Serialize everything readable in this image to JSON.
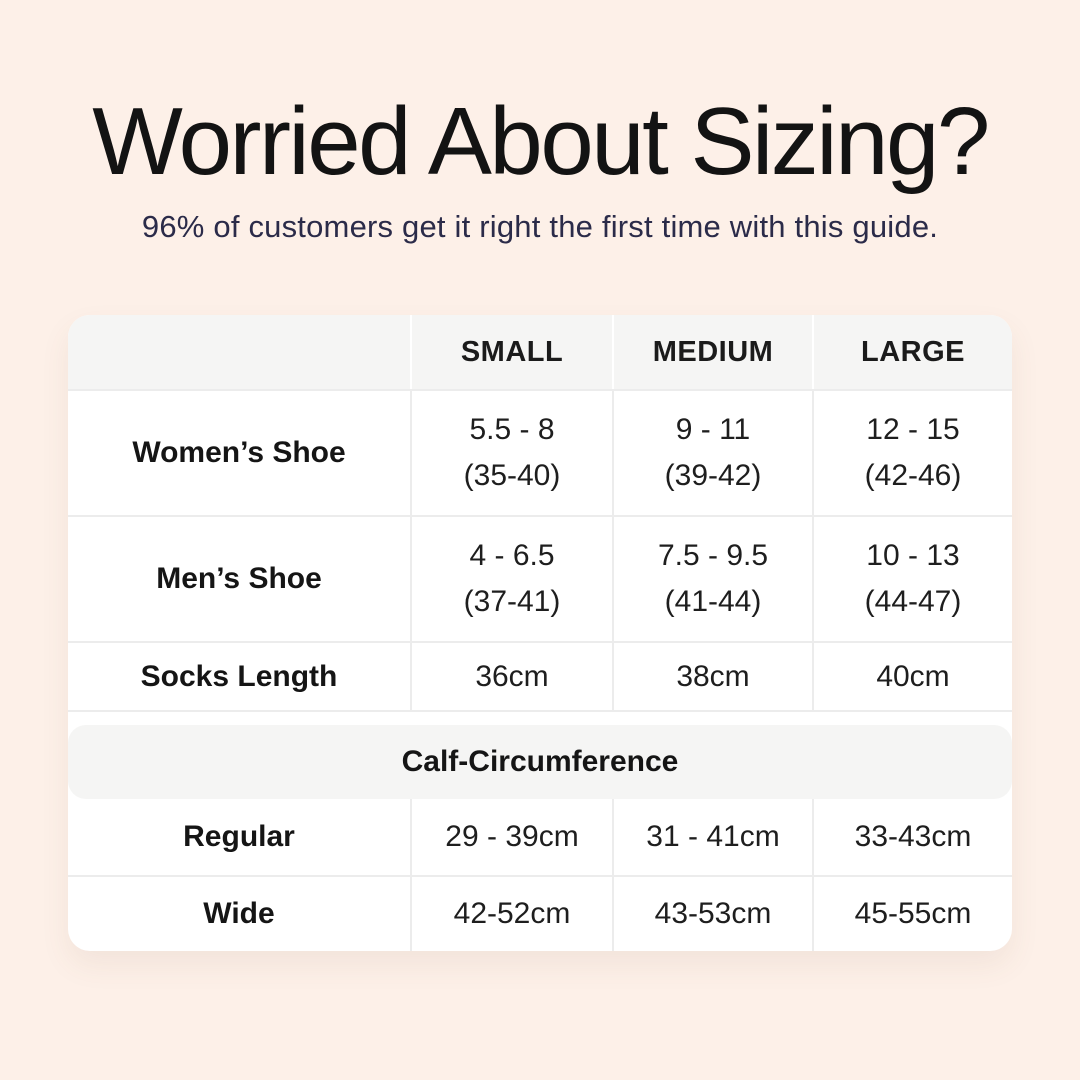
{
  "page": {
    "title": "Worried About Sizing?",
    "subtitle": "96% of customers get it right the first time with this guide."
  },
  "colors": {
    "background": "#fdf0e8",
    "card": "#ffffff",
    "band_gray": "#f5f5f4",
    "divider": "#ececec",
    "title_text": "#131313",
    "subtitle_text": "#2b2b49"
  },
  "table": {
    "headers": [
      "",
      "SMALL",
      "MEDIUM",
      "LARGE"
    ],
    "shoe_rows": [
      {
        "label": "Women’s Shoe",
        "cells": [
          {
            "main": "5.5 - 8",
            "sub": "(35-40)"
          },
          {
            "main": "9 - 11",
            "sub": "(39-42)"
          },
          {
            "main": "12 - 15",
            "sub": "(42-46)"
          }
        ]
      },
      {
        "label": "Men’s Shoe",
        "cells": [
          {
            "main": "4 - 6.5",
            "sub": "(37-41)"
          },
          {
            "main": "7.5 - 9.5",
            "sub": "(41-44)"
          },
          {
            "main": "10 - 13",
            "sub": "(44-47)"
          }
        ]
      }
    ],
    "socks_row": {
      "label": "Socks Length",
      "cells": [
        "36cm",
        "38cm",
        "40cm"
      ]
    },
    "section_header": "Calf-Circumference",
    "calf_rows": [
      {
        "label": "Regular",
        "cells": [
          "29 - 39cm",
          "31 - 41cm",
          "33-43cm"
        ]
      },
      {
        "label": "Wide",
        "cells": [
          "42-52cm",
          "43-53cm",
          "45-55cm"
        ]
      }
    ]
  },
  "chart_data": {
    "type": "table",
    "title": "Worried About Sizing?",
    "subtitle": "96% of customers get it right the first time with this guide.",
    "columns": [
      "",
      "SMALL",
      "MEDIUM",
      "LARGE"
    ],
    "rows": [
      [
        "Women’s Shoe",
        "5.5 - 8 (35-40)",
        "9 - 11 (39-42)",
        "12 - 15 (42-46)"
      ],
      [
        "Men’s Shoe",
        "4 - 6.5 (37-41)",
        "7.5 - 9.5 (41-44)",
        "10 - 13 (44-47)"
      ],
      [
        "Socks Length",
        "36cm",
        "38cm",
        "40cm"
      ],
      [
        "Calf-Circumference (section header spanning all columns)",
        "",
        "",
        ""
      ],
      [
        "Regular",
        "29 - 39cm",
        "31 - 41cm",
        "33-43cm"
      ],
      [
        "Wide",
        "42-52cm",
        "43-53cm",
        "45-55cm"
      ]
    ]
  }
}
